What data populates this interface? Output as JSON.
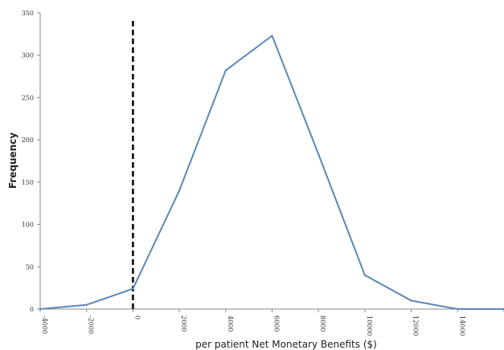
{
  "chart_data": {
    "type": "line",
    "title": "",
    "xlabel": "per patient Net Monetary Benefits ($)",
    "ylabel": "Frequency",
    "xlim": [
      -4000,
      16000
    ],
    "ylim": [
      0,
      350
    ],
    "xticks": [
      -4000,
      -2000,
      0,
      2000,
      4000,
      6000,
      8000,
      10000,
      12000,
      14000,
      16000
    ],
    "xtick_labels": [
      "-4000",
      "-2000",
      "0",
      "2000",
      "4000",
      "6000",
      "8000",
      "10000",
      "12000",
      "14000",
      ""
    ],
    "yticks": [
      0,
      50,
      100,
      150,
      200,
      250,
      300,
      350
    ],
    "ytick_labels": [
      "0",
      "50",
      "100",
      "150",
      "200",
      "250",
      "300",
      "350"
    ],
    "grid": false,
    "reference_line": {
      "x": 0,
      "style": "dashed"
    },
    "series": [
      {
        "color": "#5b87b8",
        "x": [
          -4000,
          -2000,
          0,
          2000,
          4000,
          6000,
          8000,
          10000,
          12000,
          14000,
          16000
        ],
        "y": [
          0,
          5,
          24,
          140,
          282,
          323,
          183,
          40,
          10,
          0,
          0
        ]
      }
    ]
  }
}
